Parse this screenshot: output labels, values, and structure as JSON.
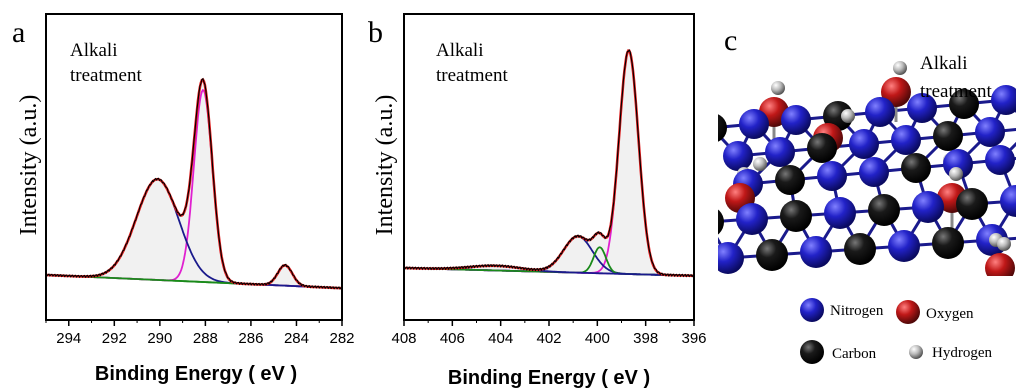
{
  "chart_data": [
    {
      "type": "line",
      "panel_label": "a",
      "annotation": [
        "Alkali",
        "treatment"
      ],
      "xlabel": "Binding Energy ( eV )",
      "ylabel": "Intensity (a.u.)",
      "xlim": [
        295,
        282
      ],
      "ylim": [
        0,
        1.0
      ],
      "x_ticks": [
        294,
        292,
        290,
        288,
        286,
        284,
        282
      ],
      "colors": {
        "raw": "#000000",
        "envelope": "#e01b1b",
        "peak_main": "#e020d0",
        "peak_broad": "#1a1a8c",
        "peak_small": "#1a8a1a",
        "background": "#1a8a1a"
      },
      "background_line": {
        "x": [
          295,
          282
        ],
        "y": [
          0.055,
          0.0
        ]
      },
      "peaks": [
        {
          "center": 288.1,
          "height": 0.8,
          "fwhm": 0.95,
          "color_key": "peak_main"
        },
        {
          "center": 290.1,
          "height": 0.42,
          "fwhm": 2.2,
          "color_key": "peak_broad"
        },
        {
          "center": 284.5,
          "height": 0.085,
          "fwhm": 0.75,
          "color_key": "peak_small"
        }
      ]
    },
    {
      "type": "line",
      "panel_label": "b",
      "annotation": [
        "Alkali",
        "treatment"
      ],
      "xlabel": "Binding Energy ( eV )",
      "ylabel": "Intensity (a.u.)",
      "xlim": [
        408,
        396
      ],
      "ylim": [
        0,
        1.0
      ],
      "x_ticks": [
        408,
        406,
        404,
        402,
        400,
        398,
        396
      ],
      "colors": {
        "raw": "#000000",
        "envelope": "#e01b1b",
        "peak_main": "#e020d0",
        "peak_broad": "#1a1a8c",
        "peak_small": "#1a8a1a",
        "background": "#9a2ad0"
      },
      "background_line": {
        "x": [
          408,
          396
        ],
        "y": [
          0.08,
          0.05
        ]
      },
      "peaks": [
        {
          "center": 398.7,
          "height": 0.86,
          "fwhm": 0.95,
          "color_key": "peak_main"
        },
        {
          "center": 400.8,
          "height": 0.14,
          "fwhm": 1.4,
          "color_key": "peak_broad"
        },
        {
          "center": 399.9,
          "height": 0.1,
          "fwhm": 0.6,
          "color_key": "peak_small"
        },
        {
          "center": 404.2,
          "height": 0.018,
          "fwhm": 2.5,
          "color_key": "peak_broad"
        }
      ]
    }
  ],
  "panel_c": {
    "panel_label": "c",
    "annotation": [
      "Alkali",
      "treatment"
    ],
    "legend": [
      {
        "label": "Nitrogen",
        "color": "#1c1cb0"
      },
      {
        "label": "Oxygen",
        "color": "#b01818"
      },
      {
        "label": "Carbon",
        "color": "#111111"
      },
      {
        "label": "Hydrogen",
        "color": "#aaaaaa"
      }
    ]
  }
}
